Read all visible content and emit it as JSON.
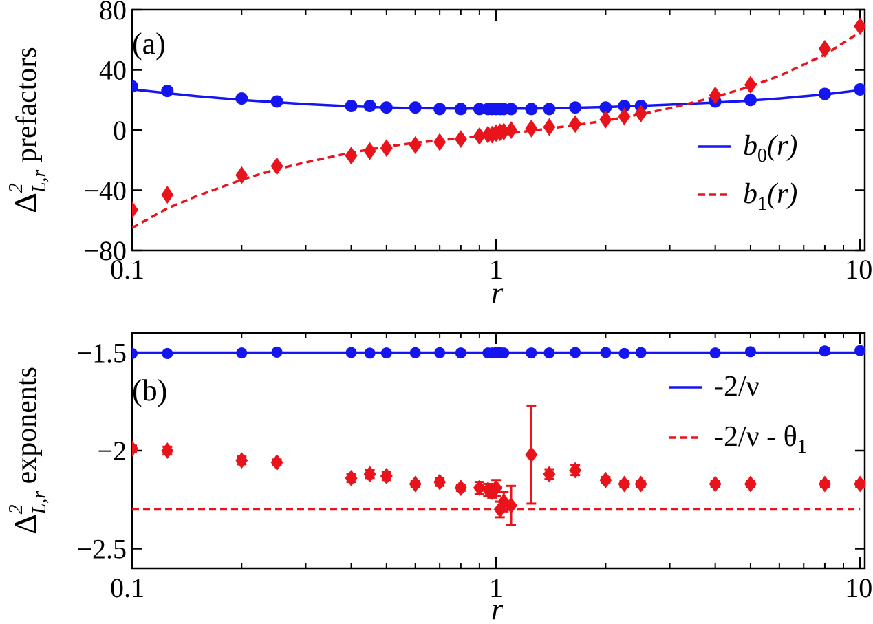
{
  "colors": {
    "series0": "#1515f0",
    "series1": "#e8131b",
    "axis": "#000000",
    "background": "#ffffff"
  },
  "chart_data": [
    {
      "type": "line",
      "panel_label": "(a)",
      "xscale": "log",
      "xlim": [
        0.1,
        10.3
      ],
      "ylim": [
        -80,
        80
      ],
      "xticks": [
        0.1,
        1,
        10
      ],
      "xtick_labels": [
        "0.1",
        "1",
        "10"
      ],
      "yticks": [
        -80,
        -40,
        0,
        40,
        80
      ],
      "ytick_labels": [
        "−80",
        "−40",
        "0",
        "40",
        "80"
      ],
      "xlabel": "r",
      "ylabel": "Δ²L,r prefactors",
      "ylabel_main": "Δ",
      "ylabel_sup": "2",
      "ylabel_sub": "L,r",
      "ylabel_text": "prefactors",
      "legend_position": "right",
      "legend": [
        {
          "name": "b0(r)",
          "base": "b",
          "sub": "0",
          "arg": "(r)",
          "style": "solid"
        },
        {
          "name": "b1(r)",
          "base": "b",
          "sub": "1",
          "arg": "(r)",
          "style": "dashed"
        }
      ],
      "series": [
        {
          "name": "b0 data",
          "marker": "circle",
          "color_key": "series0",
          "x": [
            0.1,
            0.125,
            0.2,
            0.25,
            0.4,
            0.45,
            0.5,
            0.6,
            0.7,
            0.8,
            0.9,
            0.95,
            0.975,
            1.0,
            1.025,
            1.05,
            1.1,
            1.25,
            1.4,
            1.65,
            2.0,
            2.25,
            2.5,
            4.0,
            5.0,
            8.0,
            10.0
          ],
          "y": [
            29,
            26,
            21,
            19,
            16,
            16,
            15,
            15,
            14,
            14,
            14,
            14,
            14,
            14,
            14,
            14,
            14,
            14,
            14,
            15,
            15,
            16,
            16,
            19,
            20,
            24,
            27
          ]
        },
        {
          "name": "b1 data",
          "marker": "diamond",
          "color_key": "series1",
          "x": [
            0.1,
            0.125,
            0.2,
            0.25,
            0.4,
            0.45,
            0.5,
            0.6,
            0.7,
            0.8,
            0.9,
            0.95,
            0.975,
            1.0,
            1.025,
            1.05,
            1.1,
            1.25,
            1.4,
            1.65,
            2.0,
            2.25,
            2.5,
            4.0,
            5.0,
            8.0,
            10.0
          ],
          "y": [
            -53,
            -43,
            -30,
            -24,
            -17,
            -14,
            -12,
            -10,
            -8,
            -6,
            -4,
            -3,
            -3,
            -2,
            -1.5,
            -1,
            0,
            1,
            2,
            4,
            7,
            9,
            11,
            23,
            30,
            54,
            69
          ]
        },
        {
          "name": "b0 fit",
          "style": "solid",
          "color_key": "series0",
          "x": [
            0.1,
            0.125,
            0.15,
            0.2,
            0.25,
            0.3,
            0.4,
            0.5,
            0.6,
            0.7,
            0.8,
            0.9,
            1.0,
            1.1,
            1.25,
            1.5,
            1.7,
            2.0,
            2.5,
            3.0,
            4.0,
            5.0,
            6.0,
            8.0,
            10.0
          ],
          "y": [
            27,
            24.5,
            22.5,
            20,
            18.5,
            17.3,
            15.8,
            15,
            14.6,
            14.4,
            14.3,
            14.25,
            14.2,
            14.25,
            14.3,
            14.6,
            14.9,
            15.3,
            16.1,
            16.9,
            18.3,
            19.6,
            21,
            23.7,
            26.5
          ]
        },
        {
          "name": "b1 fit",
          "style": "dashed",
          "color_key": "series1",
          "x": [
            0.1,
            0.125,
            0.15,
            0.2,
            0.25,
            0.3,
            0.4,
            0.5,
            0.6,
            0.7,
            0.8,
            0.9,
            1.0,
            1.1,
            1.25,
            1.5,
            1.7,
            2.0,
            2.5,
            3.0,
            4.0,
            5.0,
            6.0,
            8.0,
            10.0
          ],
          "y": [
            -65,
            -52,
            -44,
            -33,
            -26,
            -21.5,
            -15,
            -11,
            -8.5,
            -6.8,
            -5.3,
            -4,
            -3,
            -2,
            -0.5,
            2,
            3.7,
            6.2,
            10.5,
            14.5,
            22,
            29,
            36,
            50,
            65
          ]
        }
      ]
    },
    {
      "type": "scatter",
      "panel_label": "(b)",
      "xscale": "log",
      "xlim": [
        0.1,
        10.3
      ],
      "ylim": [
        -2.6,
        -1.4
      ],
      "xticks": [
        0.1,
        1,
        10
      ],
      "xtick_labels": [
        "0.1",
        "1",
        "10"
      ],
      "yticks": [
        -2.5,
        -2,
        -1.5
      ],
      "ytick_labels": [
        "−2.5",
        "−2",
        "−1.5"
      ],
      "xlabel": "r",
      "ylabel": "Δ²L,r exponents",
      "ylabel_main": "Δ",
      "ylabel_sup": "2",
      "ylabel_sub": "L,r",
      "ylabel_text": "exponents",
      "legend_position": "right",
      "legend": [
        {
          "name": "-2/ν",
          "text": "-2/ν",
          "style": "solid"
        },
        {
          "name": "-2/ν - θ1",
          "text": "-2/ν - θ",
          "sub": "1",
          "style": "dashed"
        }
      ],
      "series": [
        {
          "name": "-2/ν data",
          "marker": "circle",
          "color_key": "series0",
          "x": [
            0.1,
            0.125,
            0.2,
            0.25,
            0.4,
            0.45,
            0.5,
            0.6,
            0.7,
            0.8,
            0.95,
            0.975,
            1.0,
            1.025,
            1.05,
            1.25,
            1.4,
            1.65,
            2.0,
            2.25,
            2.5,
            4.0,
            5.0,
            8.0,
            10.0
          ],
          "y": [
            -1.505,
            -1.505,
            -1.502,
            -1.498,
            -1.5,
            -1.503,
            -1.502,
            -1.501,
            -1.501,
            -1.502,
            -1.502,
            -1.502,
            -1.5,
            -1.5,
            -1.502,
            -1.502,
            -1.502,
            -1.5,
            -1.5,
            -1.505,
            -1.5,
            -1.502,
            -1.496,
            -1.492,
            -1.49
          ],
          "err": [
            0,
            0,
            0,
            0,
            0,
            0,
            0,
            0,
            0,
            0,
            0,
            0,
            0,
            0,
            0,
            0,
            0,
            0,
            0,
            0,
            0,
            0,
            0.013,
            0.015,
            0
          ]
        },
        {
          "name": "-2/ν - θ1 data",
          "marker": "diamond",
          "color_key": "series1",
          "x": [
            0.1,
            0.125,
            0.2,
            0.25,
            0.4,
            0.45,
            0.5,
            0.6,
            0.7,
            0.8,
            0.9,
            0.95,
            0.975,
            1.0,
            1.025,
            1.05,
            1.1,
            1.25,
            1.4,
            1.65,
            2.0,
            2.25,
            2.5,
            4.0,
            5.0,
            8.0,
            10.0
          ],
          "y": [
            -1.99,
            -2.0,
            -2.05,
            -2.06,
            -2.14,
            -2.12,
            -2.13,
            -2.17,
            -2.16,
            -2.19,
            -2.19,
            -2.2,
            -2.21,
            -2.19,
            -2.3,
            -2.26,
            -2.28,
            -2.02,
            -2.12,
            -2.1,
            -2.15,
            -2.17,
            -2.17,
            -2.17,
            -2.17,
            -2.17,
            -2.17
          ],
          "err": [
            0.015,
            0.02,
            0.02,
            0.015,
            0.02,
            0.02,
            0.02,
            0.015,
            0.02,
            0.015,
            0.03,
            0.03,
            0.03,
            0.04,
            0.04,
            0.05,
            0.1,
            0.25,
            0.025,
            0.025,
            0.015,
            0.015,
            0.015,
            0.015,
            0.015,
            0.015,
            0.015
          ]
        },
        {
          "name": "-2/ν",
          "style": "solid",
          "color_key": "series0",
          "x": [
            0.1,
            10.0
          ],
          "y": [
            -1.5,
            -1.5
          ]
        },
        {
          "name": "-2/ν - θ1",
          "style": "dashed",
          "color_key": "series1",
          "x": [
            0.1,
            10.0
          ],
          "y": [
            -2.3,
            -2.3
          ]
        }
      ]
    }
  ]
}
